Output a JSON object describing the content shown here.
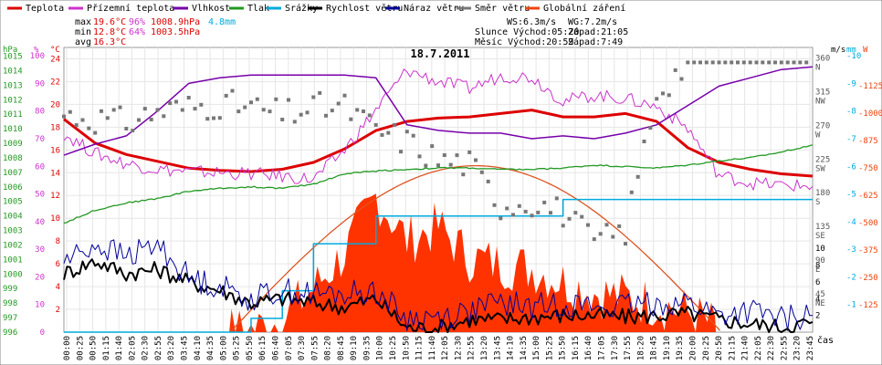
{
  "legend": [
    {
      "label": "Teplota",
      "color": "#dd0000"
    },
    {
      "label": "Přízemní teplota",
      "color": "#cc33cc"
    },
    {
      "label": "Vlhkost",
      "color": "#7700aa"
    },
    {
      "label": "Tlak",
      "color": "#229922"
    },
    {
      "label": "Srážky",
      "color": "#00aadd"
    },
    {
      "label": "Rychlost větru",
      "color": "#000000"
    },
    {
      "label": "Náraz větru",
      "color": "#000099"
    },
    {
      "label": "Směr větru",
      "color": "#777777"
    },
    {
      "label": "Globální záření",
      "color": "#ee4411"
    }
  ],
  "stats": {
    "max": {
      "label": "max",
      "temp": "19.6°C",
      "hum": "96%",
      "press": "1008.9hPa",
      "rain": "4.8mm"
    },
    "min": {
      "label": "min",
      "temp": "12.8°C",
      "hum": "64%",
      "press": "1003.5hPa"
    },
    "avg": {
      "label": "avg",
      "temp": "16.3°C"
    }
  },
  "info": {
    "ws": "WS:6.3m/s",
    "wg": "WG:7.2m/s",
    "sun": "Slunce Východ:05:20",
    "sun_set": "Západ:21:05",
    "moon": "Měsíc Východ:20:59",
    "moon_set": "Západ:7:49"
  },
  "title": "18.7.2011",
  "xlabel": "čas",
  "axes": {
    "hpa": {
      "unit": "hPa",
      "color": "#229922",
      "ticks": [
        996,
        997,
        998,
        999,
        1000,
        1001,
        1002,
        1003,
        1004,
        1005,
        1006,
        1007,
        1008,
        1009,
        1010,
        1011,
        1012,
        1013,
        1014,
        1015
      ]
    },
    "pct": {
      "unit": "%",
      "color": "#cc33cc",
      "ticks": [
        0,
        10,
        20,
        30,
        40,
        50,
        60,
        70,
        80,
        90,
        100
      ]
    },
    "temp": {
      "unit": "°C",
      "color": "#dd0000",
      "ticks": [
        2,
        4,
        6,
        8,
        10,
        12,
        14,
        16,
        18,
        20,
        22,
        24
      ]
    },
    "wind": {
      "unit": "m/s",
      "color": "#000000",
      "ticks": [
        2,
        4,
        6,
        8,
        10
      ]
    },
    "wdir": {
      "ticks": [
        {
          "deg": 45,
          "name": "NE"
        },
        {
          "deg": 90,
          "name": "E"
        },
        {
          "deg": 135,
          "name": "SE"
        },
        {
          "deg": 180,
          "name": "S"
        },
        {
          "deg": 225,
          "name": "SW"
        },
        {
          "deg": 270,
          "name": "W"
        },
        {
          "deg": 315,
          "name": "NW"
        },
        {
          "deg": 360,
          "name": "N"
        }
      ]
    },
    "rain": {
      "unit": "mm",
      "color": "#00aadd",
      "ticks": [
        1,
        2,
        3,
        4,
        5,
        6,
        7,
        8,
        9,
        10
      ]
    },
    "rad": {
      "unit": "W",
      "color": "#ee4411",
      "ticks": [
        125,
        250,
        375,
        500,
        625,
        750,
        875,
        1000,
        1125
      ]
    }
  },
  "x_ticks": [
    "00:00",
    "00:25",
    "00:50",
    "01:15",
    "01:40",
    "02:05",
    "02:30",
    "02:55",
    "03:20",
    "03:45",
    "04:10",
    "04:35",
    "05:00",
    "05:25",
    "05:50",
    "06:15",
    "06:40",
    "07:05",
    "07:30",
    "07:55",
    "08:20",
    "08:45",
    "09:10",
    "09:35",
    "10:00",
    "10:25",
    "10:50",
    "11:15",
    "11:40",
    "12:05",
    "12:30",
    "12:55",
    "13:20",
    "13:45",
    "14:10",
    "14:35",
    "15:00",
    "15:25",
    "15:50",
    "16:15",
    "16:40",
    "17:05",
    "17:30",
    "17:55",
    "18:20",
    "18:45",
    "19:10",
    "19:35",
    "20:00",
    "20:25",
    "20:50",
    "21:15",
    "21:40",
    "22:05",
    "22:30",
    "22:55",
    "23:20",
    "23:45"
  ],
  "chart_data": {
    "type": "line",
    "title": "18.7.2011",
    "xlabel": "čas",
    "x_hours": [
      0,
      1,
      2,
      3,
      4,
      5,
      6,
      7,
      8,
      9,
      10,
      11,
      12,
      13,
      14,
      15,
      16,
      17,
      18,
      19,
      20,
      21,
      22,
      23,
      24
    ],
    "series": [
      {
        "name": "Teplota",
        "unit": "°C",
        "axis": "temp",
        "values": [
          18.7,
          16.6,
          15.6,
          15,
          14.4,
          14.2,
          14.1,
          14.3,
          14.9,
          16.1,
          17.7,
          18.5,
          18.8,
          18.9,
          19.2,
          19.5,
          18.9,
          18.9,
          19.2,
          18.5,
          16.2,
          14.9,
          14.3,
          13.9,
          13.7
        ]
      },
      {
        "name": "Přízemní teplota",
        "unit": "°C",
        "axis": "temp",
        "values": [
          17.4,
          15.7,
          14.8,
          14.3,
          14.1,
          14,
          13.9,
          13.7,
          13.4,
          16,
          19.5,
          23,
          22,
          21.4,
          22.5,
          22.4,
          20.3,
          20.8,
          20.5,
          19.8,
          17.9,
          13.8,
          13.1,
          12.9,
          12.8
        ]
      },
      {
        "name": "Vlhkost",
        "unit": "%",
        "axis": "pct",
        "values": [
          64,
          68,
          71,
          80,
          90,
          92,
          93,
          93,
          93,
          93,
          92,
          75,
          73,
          72,
          72,
          70,
          71,
          70,
          72,
          75,
          82,
          89,
          92,
          95,
          96
        ]
      },
      {
        "name": "Tlak",
        "unit": "hPa",
        "axis": "hpa",
        "values": [
          1003.5,
          1004.4,
          1004.9,
          1005.2,
          1005.7,
          1005.9,
          1006,
          1005.9,
          1006.2,
          1006.9,
          1007.1,
          1007.2,
          1007.3,
          1007.3,
          1007.2,
          1007.2,
          1007.3,
          1007.5,
          1007.4,
          1007.3,
          1007.5,
          1007.8,
          1008,
          1008.4,
          1008.9
        ]
      },
      {
        "name": "Srážky",
        "unit": "mm",
        "axis": "rain",
        "values": [
          0,
          0,
          0,
          0,
          0,
          0,
          0.5,
          1.5,
          3.2,
          3.2,
          4.2,
          4.2,
          4.2,
          4.2,
          4.2,
          4.2,
          4.8,
          4.8,
          4.8,
          4.8,
          4.8,
          4.8,
          4.8,
          4.8,
          4.8
        ]
      },
      {
        "name": "Rychlost větru",
        "unit": "m/s",
        "axis": "wind",
        "values": [
          7,
          8.5,
          7,
          7.5,
          6,
          5,
          3.5,
          4,
          3.5,
          3,
          4,
          0.5,
          0.5,
          1.5,
          1.5,
          1.8,
          2,
          2,
          1.8,
          2,
          2.2,
          1.5,
          1,
          0.6,
          1.2
        ]
      },
      {
        "name": "Náraz větru",
        "unit": "m/s",
        "axis": "wind",
        "values": [
          8.5,
          10.5,
          9,
          10.5,
          6.5,
          5.5,
          4,
          5,
          4.5,
          4.5,
          5,
          1.5,
          1.8,
          2.5,
          3.5,
          3,
          3.5,
          3,
          3,
          3.5,
          3.5,
          2,
          2.5,
          1.5,
          2
        ]
      },
      {
        "name": "Globální záření",
        "unit": "W",
        "axis": "rad",
        "values": [
          0,
          0,
          0,
          0,
          0,
          0,
          10,
          60,
          200,
          360,
          620,
          420,
          480,
          340,
          310,
          290,
          230,
          180,
          160,
          130,
          90,
          20,
          0,
          0,
          0
        ]
      },
      {
        "name": "Směr větru",
        "unit": "°",
        "axis": "wdir",
        "values": [
          290,
          285,
          280,
          295,
          300,
          305,
          300,
          290,
          300,
          300,
          270,
          255,
          230,
          225,
          170,
          175,
          160,
          120,
          135,
          320,
          360,
          360,
          360,
          360,
          130
        ]
      }
    ]
  }
}
